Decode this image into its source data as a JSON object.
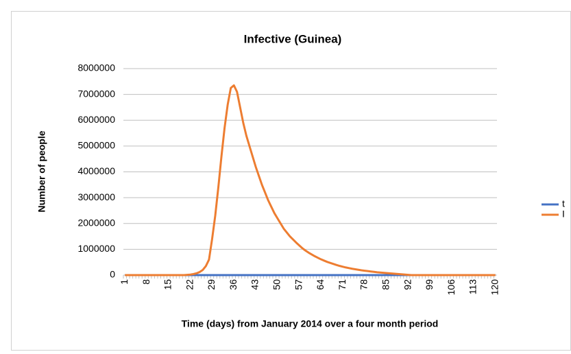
{
  "chart_data": {
    "type": "line",
    "title": "Infective (Guinea)",
    "x_label": "Time (days) from January 2014  over a four month period",
    "y_label": "Number of people",
    "categories": [
      1,
      null,
      null,
      null,
      null,
      null,
      null,
      8,
      null,
      null,
      null,
      null,
      null,
      null,
      15,
      null,
      null,
      null,
      null,
      null,
      null,
      22,
      null,
      null,
      null,
      null,
      null,
      null,
      29,
      null,
      null,
      null,
      null,
      null,
      null,
      36,
      null,
      null,
      null,
      null,
      null,
      null,
      43,
      null,
      null,
      null,
      null,
      null,
      null,
      50,
      null,
      null,
      null,
      null,
      null,
      null,
      57,
      null,
      null,
      null,
      null,
      null,
      null,
      64,
      null,
      null,
      null,
      null,
      null,
      null,
      71,
      null,
      null,
      null,
      null,
      null,
      null,
      78,
      null,
      null,
      null,
      null,
      null,
      null,
      85,
      null,
      null,
      null,
      null,
      null,
      null,
      92,
      null,
      null,
      null,
      null,
      null,
      null,
      99,
      null,
      null,
      null,
      null,
      null,
      null,
      106,
      null,
      null,
      null,
      null,
      null,
      null,
      113,
      null,
      null,
      null,
      null,
      null,
      null,
      120
    ],
    "series": [
      {
        "name": "t",
        "color": "#4472c4",
        "values": [
          0,
          0,
          0,
          0,
          0,
          0,
          0,
          0,
          0,
          0,
          0,
          0,
          0,
          0,
          0,
          0,
          0,
          0,
          0,
          0,
          0,
          0,
          0,
          0,
          0,
          0,
          0,
          0,
          0,
          0,
          0,
          0,
          0,
          0,
          0,
          0,
          0,
          0,
          0,
          0,
          0,
          0,
          0,
          0,
          0,
          0,
          0,
          0,
          0,
          0,
          0,
          0,
          0,
          0,
          0,
          0,
          0,
          0,
          0,
          0,
          0,
          0,
          0,
          0,
          0,
          0,
          0,
          0,
          0,
          0,
          0,
          0,
          0,
          0,
          0,
          0,
          0,
          0,
          0,
          0,
          0,
          0,
          0,
          0,
          0,
          0,
          0,
          0,
          0,
          0,
          0,
          0,
          0,
          0,
          0,
          0,
          0,
          0,
          0,
          0,
          0,
          0,
          0,
          0,
          0,
          0,
          0,
          0,
          0,
          0,
          0,
          0,
          0,
          0,
          0,
          0,
          0,
          0,
          0,
          0
        ]
      },
      {
        "name": "I",
        "color": "#ed7d31",
        "values": [
          0,
          0,
          0,
          0,
          0,
          0,
          0,
          0,
          0,
          0,
          0,
          0,
          0,
          0,
          0,
          0,
          0,
          0,
          0,
          0,
          10000,
          20000,
          40000,
          70000,
          120000,
          200000,
          350000,
          600000,
          1400000,
          2300000,
          3400000,
          4600000,
          5700000,
          6600000,
          7250000,
          7350000,
          7100000,
          6500000,
          5900000,
          5400000,
          5000000,
          4600000,
          4200000,
          3850000,
          3500000,
          3200000,
          2900000,
          2650000,
          2400000,
          2200000,
          2000000,
          1800000,
          1650000,
          1500000,
          1380000,
          1260000,
          1150000,
          1040000,
          950000,
          870000,
          800000,
          730000,
          670000,
          610000,
          560000,
          510000,
          470000,
          430000,
          390000,
          355000,
          325000,
          295000,
          270000,
          245000,
          225000,
          205000,
          185000,
          170000,
          155000,
          140000,
          125000,
          110000,
          100000,
          90000,
          80000,
          70000,
          60000,
          50000,
          40000,
          30000,
          20000,
          10000,
          0,
          0,
          0,
          0,
          0,
          0,
          0,
          0,
          0,
          0,
          0,
          0,
          0,
          0,
          0,
          0,
          0,
          0,
          0,
          0,
          0,
          0,
          0,
          0,
          0,
          0,
          0,
          0
        ]
      }
    ],
    "ylim": [
      0,
      8000000
    ],
    "yticks": [
      0,
      1000000,
      2000000,
      3000000,
      4000000,
      5000000,
      6000000,
      7000000,
      8000000
    ],
    "grid": true,
    "legend": "right"
  }
}
